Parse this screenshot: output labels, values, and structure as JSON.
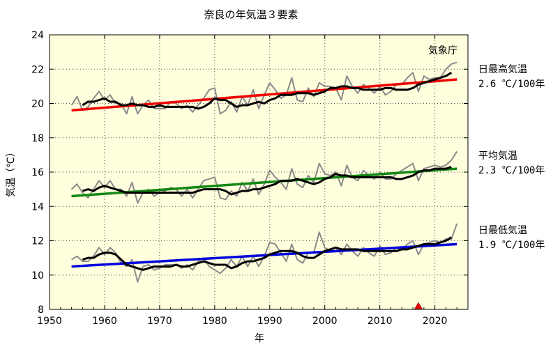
{
  "chart_data": {
    "type": "line",
    "title": "奈良の年気温３要素",
    "xlabel": "年",
    "ylabel": "気温（℃）",
    "source": "気象庁",
    "xlim": [
      1950,
      2026
    ],
    "ylim": [
      8,
      24
    ],
    "x_ticks": [
      1950,
      1960,
      1970,
      1980,
      1990,
      2000,
      2010,
      2020
    ],
    "y_ticks": [
      8,
      10,
      12,
      14,
      16,
      18,
      20,
      22,
      24
    ],
    "grid": true,
    "marker": {
      "x": 2017,
      "y": 8,
      "color": "#dd0000"
    },
    "years": [
      1954,
      1955,
      1956,
      1957,
      1958,
      1959,
      1960,
      1961,
      1962,
      1963,
      1964,
      1965,
      1966,
      1967,
      1968,
      1969,
      1970,
      1971,
      1972,
      1973,
      1974,
      1975,
      1976,
      1977,
      1978,
      1979,
      1980,
      1981,
      1982,
      1983,
      1984,
      1985,
      1986,
      1987,
      1988,
      1989,
      1990,
      1991,
      1992,
      1993,
      1994,
      1995,
      1996,
      1997,
      1998,
      1999,
      2000,
      2001,
      2002,
      2003,
      2004,
      2005,
      2006,
      2007,
      2008,
      2009,
      2010,
      2011,
      2012,
      2013,
      2014,
      2015,
      2016,
      2017,
      2018,
      2019,
      2020,
      2021,
      2022,
      2023,
      2024
    ],
    "groups": [
      {
        "label": "日最高気温",
        "trend_text": "2.6 ℃/100年",
        "trend_color": "#ee0000",
        "trend_line": {
          "x": [
            1954,
            2024
          ],
          "y": [
            19.6,
            21.4
          ]
        },
        "annual": [
          19.9,
          20.4,
          19.6,
          19.8,
          20.3,
          20.7,
          20.2,
          20.5,
          20.0,
          20.0,
          19.4,
          20.4,
          19.4,
          19.9,
          20.2,
          19.7,
          19.7,
          19.7,
          20.1,
          20.0,
          19.7,
          19.9,
          19.5,
          19.9,
          20.3,
          20.8,
          20.9,
          19.4,
          19.6,
          20.1,
          19.5,
          20.4,
          19.9,
          20.8,
          19.7,
          20.5,
          21.2,
          20.8,
          20.3,
          20.5,
          21.5,
          20.2,
          20.1,
          20.9,
          20.4,
          21.2,
          21.0,
          21.0,
          20.9,
          20.2,
          21.6,
          21.0,
          20.6,
          21.1,
          20.9,
          20.6,
          21.0,
          20.5,
          20.7,
          21.1,
          21.1,
          21.5,
          21.8,
          20.7,
          21.6,
          21.4,
          21.5,
          21.5,
          22.0,
          22.3,
          22.4
        ],
        "moving_avg_x": [
          1956,
          2022
        ],
        "moving_avg": [
          19.9,
          20.1,
          20.1,
          20.2,
          20.3,
          20.1,
          20.1,
          19.9,
          19.9,
          20.0,
          19.9,
          19.9,
          19.8,
          19.8,
          19.9,
          19.8,
          19.8,
          19.8,
          19.8,
          19.8,
          19.8,
          19.7,
          19.8,
          20.0,
          20.3,
          20.2,
          20.2,
          20.0,
          19.8,
          19.9,
          19.9,
          20.0,
          20.1,
          20.0,
          20.2,
          20.3,
          20.5,
          20.5,
          20.5,
          20.6,
          20.6,
          20.6,
          20.5,
          20.6,
          20.7,
          20.9,
          20.9,
          21.0,
          21.0,
          20.9,
          20.9,
          20.8,
          20.8,
          20.8,
          20.8,
          20.9,
          20.9,
          20.8,
          20.8,
          20.8,
          20.9,
          21.1,
          21.2,
          21.3,
          21.4,
          21.5,
          21.6,
          21.8
        ]
      },
      {
        "label": "平均気温",
        "trend_text": "2.3 ℃/100年",
        "trend_color": "#118811",
        "trend_line": {
          "x": [
            1954,
            2024
          ],
          "y": [
            14.6,
            16.2
          ]
        },
        "annual": [
          15.0,
          15.3,
          14.8,
          14.5,
          15.0,
          15.5,
          15.1,
          15.5,
          15.0,
          15.0,
          14.6,
          15.4,
          14.2,
          14.8,
          15.0,
          14.6,
          14.8,
          14.9,
          15.1,
          15.0,
          14.6,
          15.0,
          14.5,
          15.0,
          15.5,
          15.6,
          15.7,
          14.5,
          14.4,
          14.9,
          14.6,
          15.4,
          14.9,
          15.6,
          14.7,
          15.3,
          16.1,
          15.7,
          15.4,
          15.0,
          16.2,
          15.3,
          15.1,
          15.8,
          15.4,
          16.5,
          15.9,
          15.8,
          16.0,
          15.2,
          16.4,
          15.7,
          15.5,
          16.1,
          15.8,
          15.6,
          16.0,
          15.6,
          15.6,
          15.9,
          16.1,
          16.3,
          16.5,
          15.5,
          16.2,
          16.3,
          16.4,
          16.3,
          16.4,
          16.7,
          17.2
        ],
        "moving_avg_x": [
          1956,
          2022
        ],
        "moving_avg": [
          14.9,
          15.0,
          14.9,
          15.1,
          15.2,
          15.1,
          15.0,
          14.9,
          14.8,
          14.8,
          14.8,
          14.8,
          14.8,
          14.8,
          14.8,
          14.8,
          14.8,
          14.8,
          14.8,
          14.8,
          14.8,
          14.9,
          15.0,
          15.0,
          15.0,
          15.0,
          14.9,
          14.7,
          14.8,
          14.9,
          14.9,
          15.0,
          15.0,
          15.1,
          15.2,
          15.3,
          15.5,
          15.5,
          15.5,
          15.6,
          15.5,
          15.4,
          15.3,
          15.4,
          15.6,
          15.7,
          15.9,
          15.8,
          15.8,
          15.7,
          15.7,
          15.7,
          15.7,
          15.7,
          15.7,
          15.7,
          15.7,
          15.6,
          15.6,
          15.7,
          15.8,
          16.0,
          16.1,
          16.1,
          16.2,
          16.2,
          16.2,
          16.3
        ]
      },
      {
        "label": "日最低気温",
        "trend_text": "1.9 ℃/100年",
        "trend_color": "#0000dd",
        "trend_line": {
          "x": [
            1954,
            2024
          ],
          "y": [
            10.5,
            11.8
          ]
        },
        "annual": [
          10.9,
          11.1,
          10.8,
          10.8,
          11.1,
          11.6,
          11.2,
          11.6,
          11.3,
          10.7,
          10.5,
          10.9,
          9.6,
          10.5,
          10.6,
          10.3,
          10.4,
          10.6,
          10.6,
          10.6,
          10.4,
          10.6,
          10.3,
          10.8,
          11.0,
          10.5,
          10.3,
          10.1,
          10.4,
          10.9,
          10.5,
          11.1,
          10.5,
          11.1,
          10.5,
          11.1,
          11.9,
          11.8,
          11.3,
          10.8,
          11.8,
          10.9,
          10.7,
          11.3,
          11.3,
          12.5,
          11.6,
          11.4,
          11.6,
          11.2,
          11.8,
          11.4,
          11.1,
          11.6,
          11.3,
          11.1,
          11.7,
          11.2,
          11.3,
          11.6,
          11.5,
          11.8,
          12.0,
          11.2,
          11.8,
          11.9,
          12.0,
          11.9,
          12.1,
          12.1,
          13.0
        ],
        "moving_avg_x": [
          1956,
          2022
        ],
        "moving_avg": [
          10.9,
          11.0,
          11.0,
          11.2,
          11.3,
          11.3,
          11.2,
          10.9,
          10.6,
          10.5,
          10.4,
          10.3,
          10.4,
          10.5,
          10.5,
          10.5,
          10.5,
          10.6,
          10.5,
          10.5,
          10.6,
          10.7,
          10.8,
          10.7,
          10.6,
          10.6,
          10.6,
          10.4,
          10.5,
          10.7,
          10.8,
          10.8,
          10.9,
          11.0,
          11.2,
          11.3,
          11.4,
          11.4,
          11.4,
          11.3,
          11.1,
          11.0,
          11.0,
          11.2,
          11.4,
          11.5,
          11.6,
          11.5,
          11.5,
          11.5,
          11.5,
          11.4,
          11.4,
          11.4,
          11.4,
          11.4,
          11.4,
          11.4,
          11.5,
          11.5,
          11.6,
          11.7,
          11.8,
          11.8,
          11.8,
          11.9,
          12.0,
          12.2
        ]
      }
    ]
  }
}
